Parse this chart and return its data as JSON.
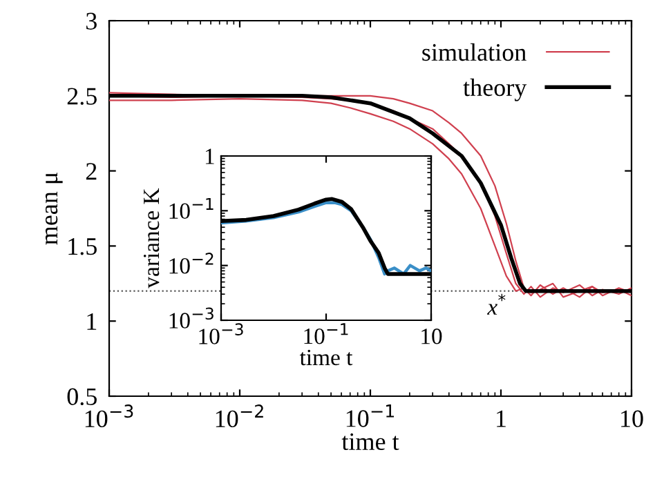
{
  "chart_data": [
    {
      "type": "line",
      "xlabel": "time t",
      "ylabel": "mean μ",
      "log": "x",
      "xlim": [
        0.001,
        10
      ],
      "ylim": [
        0.5,
        3
      ],
      "xticks": [
        {
          "value": 0.001,
          "label": "10$^{−3}$"
        },
        {
          "value": 0.01,
          "label": "10$^{−2}$"
        },
        {
          "value": 0.1,
          "label": "10$^{−1}$"
        },
        1,
        10
      ],
      "yticks": [
        0.5,
        1,
        1.5,
        2,
        2.5,
        3
      ],
      "grid": false,
      "legend": "top right",
      "ref_lines": [
        {
          "axis": "y",
          "value": 1.2,
          "color": "#555555",
          "line_style": "dotted"
        }
      ],
      "annotations": [
        {
          "text": "x$^{*}$",
          "x": 1.5,
          "y": 1.2
        }
      ],
      "series": [
        {
          "name": "simulation",
          "color": "#d0404f",
          "x": [
            0.001,
            0.003,
            0.01,
            0.03,
            0.05,
            0.07,
            0.1,
            0.15,
            0.2,
            0.3,
            0.4,
            0.5,
            0.7,
            0.9,
            1.1,
            1.3,
            1.5,
            1.7,
            2,
            2.5,
            3,
            4,
            5,
            6,
            8,
            10
          ],
          "values": [
            2.47,
            2.47,
            2.48,
            2.47,
            2.45,
            2.42,
            2.38,
            2.33,
            2.28,
            2.18,
            2.08,
            1.98,
            1.75,
            1.5,
            1.3,
            1.2,
            1.22,
            1.17,
            1.24,
            1.18,
            1.22,
            1.16,
            1.23,
            1.19,
            1.21,
            1.17
          ]
        },
        {
          "color": "#d0404f",
          "x": [
            0.001,
            0.003,
            0.01,
            0.03,
            0.05,
            0.07,
            0.1,
            0.15,
            0.2,
            0.3,
            0.4,
            0.5,
            0.7,
            0.9,
            1.1,
            1.3,
            1.5,
            1.7,
            2,
            2.5,
            3,
            4,
            5,
            6,
            8,
            10
          ],
          "values": [
            2.5,
            2.49,
            2.5,
            2.49,
            2.48,
            2.47,
            2.45,
            2.4,
            2.35,
            2.28,
            2.18,
            2.1,
            1.92,
            1.7,
            1.45,
            1.25,
            1.18,
            1.23,
            1.16,
            1.22,
            1.19,
            1.24,
            1.17,
            1.21,
            1.18,
            1.22
          ]
        },
        {
          "color": "#d0404f",
          "x": [
            0.001,
            0.003,
            0.01,
            0.03,
            0.05,
            0.07,
            0.1,
            0.15,
            0.2,
            0.3,
            0.4,
            0.5,
            0.7,
            0.9,
            1.1,
            1.3,
            1.5,
            1.7,
            2,
            2.5,
            3,
            4,
            5,
            6,
            8,
            10
          ],
          "values": [
            2.52,
            2.51,
            2.5,
            2.5,
            2.5,
            2.5,
            2.5,
            2.48,
            2.45,
            2.4,
            2.32,
            2.25,
            2.1,
            1.9,
            1.65,
            1.4,
            1.22,
            1.19,
            1.21,
            1.25,
            1.16,
            1.2,
            1.23,
            1.17,
            1.22,
            1.19
          ]
        },
        {
          "name": "theory",
          "color": "#000000",
          "x": [
            0.001,
            0.01,
            0.03,
            0.05,
            0.1,
            0.2,
            0.3,
            0.5,
            0.7,
            1,
            1.2,
            1.4,
            1.55,
            2,
            10
          ],
          "values": [
            2.5,
            2.5,
            2.5,
            2.49,
            2.45,
            2.35,
            2.25,
            2.1,
            1.92,
            1.64,
            1.42,
            1.25,
            1.2,
            1.2,
            1.2
          ]
        }
      ]
    },
    {
      "type": "line",
      "xlabel": "time t",
      "ylabel": "variance K",
      "log": "xy",
      "xlim": [
        0.001,
        10
      ],
      "ylim": [
        0.001,
        1
      ],
      "xticks": [
        {
          "value": 0.001,
          "label": "10$^{−3}$"
        },
        {
          "value": 0.1,
          "label": "10$^{−1}$"
        },
        10
      ],
      "yticks": [
        {
          "value": 0.001,
          "label": "10$^{−3}$"
        },
        {
          "value": 0.01,
          "label": "10$^{−2}$"
        },
        {
          "value": 0.1,
          "label": "10$^{−1}$"
        },
        1
      ],
      "grid": false,
      "series": [
        {
          "color": "#3a8fc8",
          "x": [
            0.001,
            0.003,
            0.01,
            0.03,
            0.06,
            0.1,
            0.15,
            0.2,
            0.3,
            0.5,
            0.7,
            1,
            1.3,
            1.5,
            2,
            3,
            4,
            6,
            8,
            10
          ],
          "values": [
            0.06,
            0.065,
            0.075,
            0.095,
            0.12,
            0.14,
            0.14,
            0.13,
            0.1,
            0.05,
            0.03,
            0.014,
            0.007,
            0.008,
            0.009,
            0.007,
            0.01,
            0.008,
            0.009,
            0.008
          ]
        },
        {
          "color": "#000000",
          "x": [
            0.001,
            0.003,
            0.01,
            0.03,
            0.06,
            0.1,
            0.13,
            0.2,
            0.3,
            0.5,
            0.7,
            1,
            1.3,
            1.5,
            10
          ],
          "values": [
            0.065,
            0.068,
            0.08,
            0.105,
            0.135,
            0.16,
            0.164,
            0.145,
            0.107,
            0.05,
            0.028,
            0.017,
            0.009,
            0.007,
            0.007
          ]
        }
      ]
    }
  ]
}
